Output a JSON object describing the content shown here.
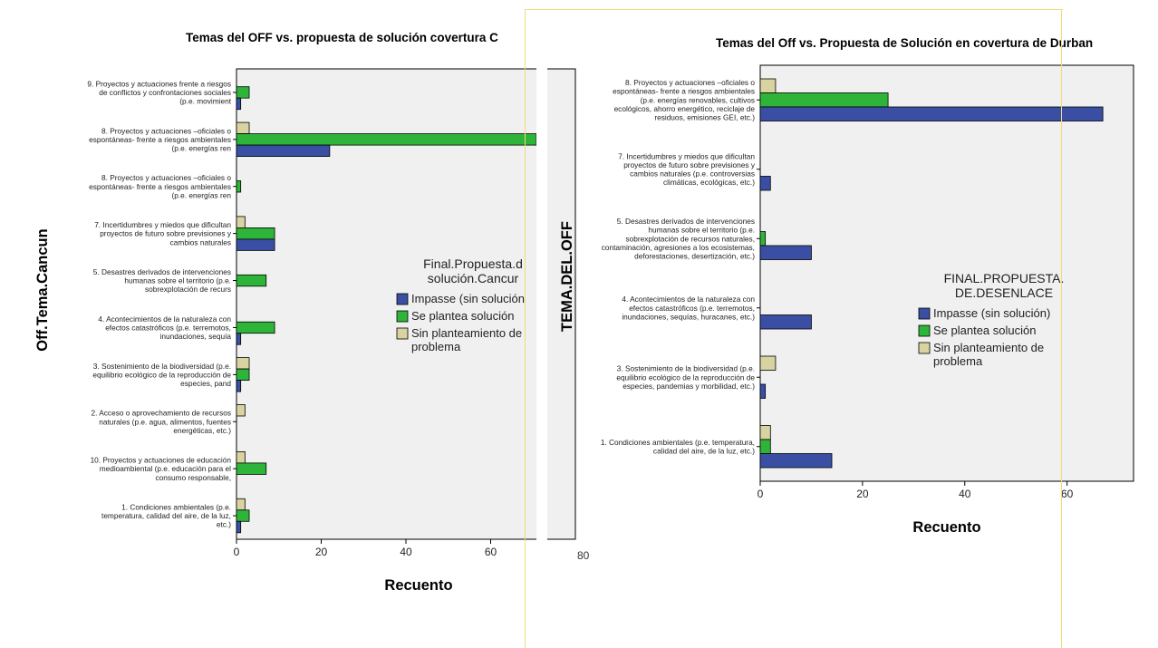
{
  "chart_data": [
    {
      "type": "bar",
      "orientation": "horizontal",
      "title": "Temas del OFF vs. propuesta de solución covertura C",
      "xlabel": "Recuento",
      "ylabel": "Off.Tema.Cancun",
      "xlim": [
        0,
        80
      ],
      "xticks": [
        "0",
        "20",
        "40",
        "60"
      ],
      "grid": false,
      "legend_title": "Final.Propuesta.d solución.Cancur",
      "legend_placement": "center-right",
      "categories": [
        "9. Proyectos y actuaciones frente a riesgos de conflictos y confrontaciones sociales (p.e. movimient",
        "8. Proyectos y actuaciones –oficiales o espontáneas- frente a riesgos ambientales (p.e. energías ren",
        "8. Proyectos y actuaciones –oficiales o espontáneas- frente a riesgos ambientales (p.e. energías ren",
        "7. Incertidumbres y miedos que dificultan proyectos de futuro sobre previsiones y cambios naturales",
        "5. Desastres derivados de intervenciones humanas sobre el territorio (p.e. sobrexplotación de recurs",
        "4. Acontecimientos de la naturaleza con efectos catastróficos (p.e. terremotos, inundaciones, sequía",
        "3. Sostenimiento de la biodiversidad (p.e. equilibrio ecológico de la reproducción de especies, pand",
        "2. Acceso o aprovechamiento de recursos naturales (p.e. agua, alimentos, fuentes energéticas, etc.)",
        "10. Proyectos y actuaciones de educación medioambiental (p.e. educación para el consumo responsable,",
        "1. Condiciones ambientales (p.e. temperatura, calidad del aire, de la luz, etc.)"
      ],
      "series": [
        {
          "name": "Impasse (sin solución",
          "color": "#3a4fa3",
          "values": [
            1,
            22,
            0,
            9,
            0,
            1,
            1,
            0,
            0,
            1
          ]
        },
        {
          "name": "Se plantea solución",
          "color": "#2fb43a",
          "values": [
            3,
            74,
            1,
            9,
            7,
            9,
            3,
            0,
            7,
            3
          ]
        },
        {
          "name": "Sin planteamiento de problema",
          "color": "#d8d3a0",
          "values": [
            0,
            3,
            0,
            2,
            0,
            0,
            3,
            2,
            2,
            2
          ]
        }
      ]
    },
    {
      "type": "bar",
      "orientation": "horizontal",
      "title": "Temas del Off vs. Propuesta de Solución en covertura de Durban",
      "xlabel": "Recuento",
      "ylabel": "TEMA.DEL.OFF",
      "xlim": [
        0,
        73
      ],
      "xticks": [
        "0",
        "20",
        "40",
        "60"
      ],
      "grid": false,
      "legend_title": "FINAL.PROPUESTA. DE.DESENLACE",
      "legend_placement": "center-right",
      "categories": [
        "8. Proyectos y actuaciones –oficiales o espontáneas- frente a riesgos ambientales (p.e. energías renovables, cultivos ecológicos, ahorro energético, reciclaje de residuos, emisiones GEI, etc.)",
        "7. Incertidumbres y miedos que dificultan proyectos de futuro sobre previsiones y cambios naturales (p.e. controversias climáticas, ecológicas, etc.)",
        "5. Desastres derivados de intervenciones humanas sobre el territorio (p.e. sobrexplotación de recursos naturales, contaminación, agresiones a los ecosistemas, deforestaciones, desertización, etc.)",
        "4. Acontecimientos de la naturaleza con efectos catastróficos (p.e. terremotos, inundaciones, sequías, huracanes, etc.)",
        "3. Sostenimiento de la biodiversidad (p.e. equilibrio ecológico de la reproducción de especies, pandemias y morbilidad, etc.)",
        "1. Condiciones ambientales (p.e. temperatura, calidad del aire, de la luz, etc.)"
      ],
      "series": [
        {
          "name": "Impasse (sin solución)",
          "color": "#3a4fa3",
          "values": [
            67,
            2,
            10,
            10,
            1,
            14
          ]
        },
        {
          "name": "Se plantea solución",
          "color": "#2fb43a",
          "values": [
            25,
            0,
            1,
            0,
            0,
            2
          ]
        },
        {
          "name": "Sin planteamiento de problema",
          "color": "#d8d3a0",
          "values": [
            3,
            0,
            0,
            0,
            3,
            2
          ]
        }
      ]
    }
  ],
  "stray_text": {
    "tick_80": "80"
  }
}
